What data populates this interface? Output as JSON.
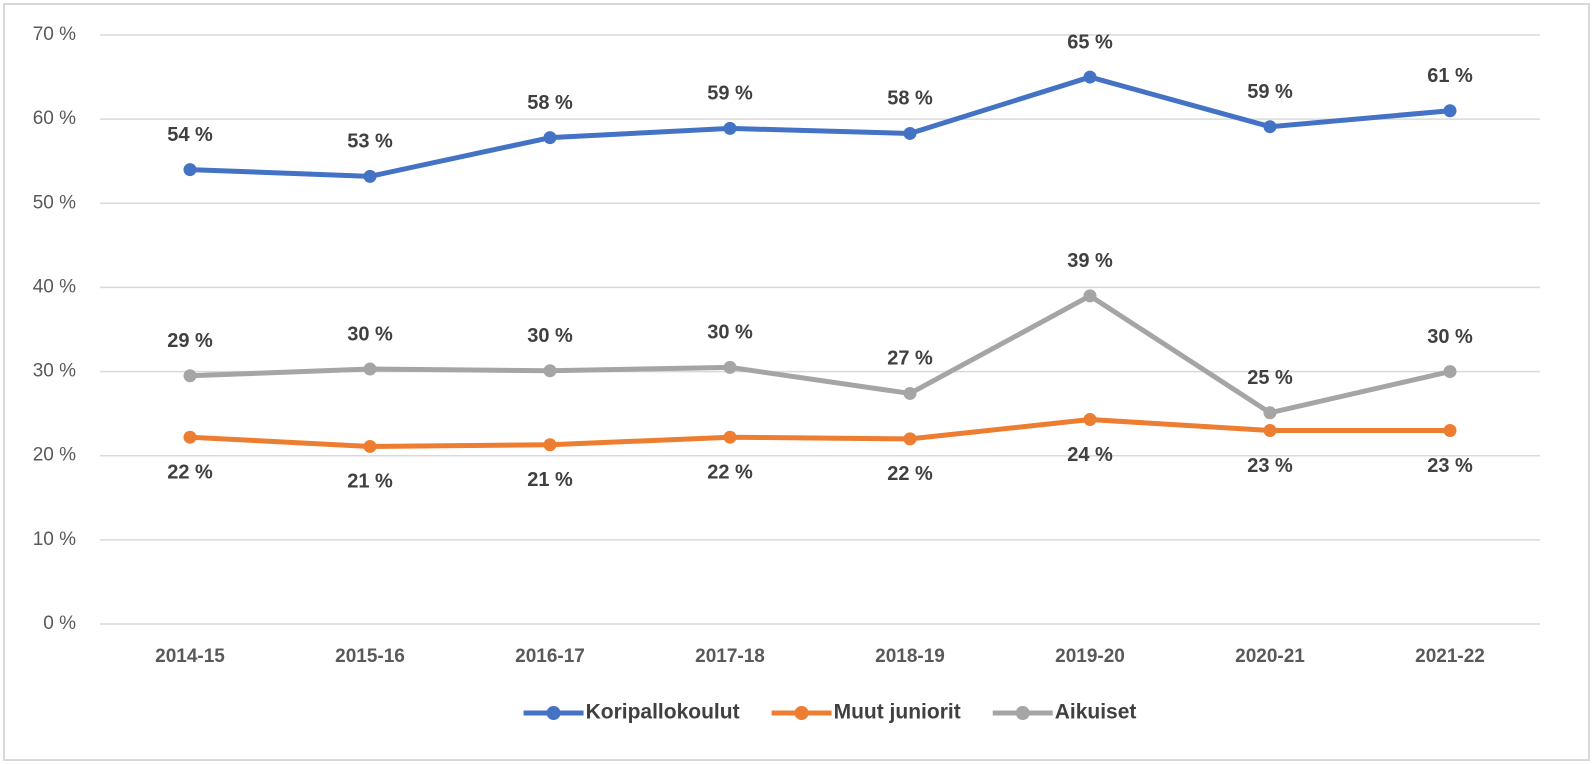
{
  "chart_data": {
    "type": "line",
    "categories": [
      "2014-15",
      "2015-16",
      "2016-17",
      "2017-18",
      "2018-19",
      "2019-20",
      "2020-21",
      "2021-22"
    ],
    "series": [
      {
        "name": "Koripallokoulut",
        "color": "#4472c4",
        "values": [
          54,
          53.2,
          57.8,
          58.9,
          58.3,
          65,
          59.1,
          61
        ],
        "value_labels": [
          "54 %",
          "53 %",
          "58 %",
          "59 %",
          "58 %",
          "65 %",
          "59 %",
          "61 %"
        ]
      },
      {
        "name": "Muut juniorit",
        "color": "#ed7d31",
        "values": [
          22.2,
          21.1,
          21.3,
          22.2,
          22,
          24.3,
          23,
          23
        ],
        "value_labels": [
          "22 %",
          "21 %",
          "21 %",
          "22 %",
          "22 %",
          "24 %",
          "23 %",
          "23 %"
        ]
      },
      {
        "name": "Aikuiset",
        "color": "#a5a5a5",
        "values": [
          29.5,
          30.3,
          30.1,
          30.5,
          27.4,
          39,
          25.1,
          30
        ],
        "value_labels": [
          "29 %",
          "30 %",
          "30 %",
          "30 %",
          "27 %",
          "39 %",
          "25 %",
          "30 %"
        ]
      }
    ],
    "ylim": [
      0,
      70
    ],
    "yticks": [
      {
        "value": 0,
        "label": "0 %"
      },
      {
        "value": 10,
        "label": "10 %"
      },
      {
        "value": 20,
        "label": "20 %"
      },
      {
        "value": 30,
        "label": "30 %"
      },
      {
        "value": 40,
        "label": "40 %"
      },
      {
        "value": 50,
        "label": "50 %"
      },
      {
        "value": 60,
        "label": "60 %"
      },
      {
        "value": 70,
        "label": "70 %"
      }
    ],
    "grid": true,
    "legend": "bottom"
  }
}
